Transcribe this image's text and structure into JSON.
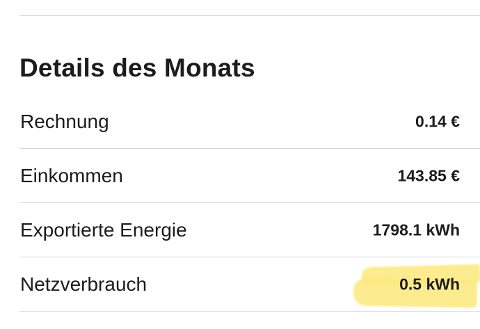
{
  "section": {
    "title": "Details des Monats"
  },
  "rows": [
    {
      "label": "Rechnung",
      "value": "0.14 €"
    },
    {
      "label": "Einkommen",
      "value": "143.85 €"
    },
    {
      "label": "Exportierte Energie",
      "value": "1798.1 kWh"
    },
    {
      "label": "Netzverbrauch",
      "value": "0.5 kWh",
      "highlighted": true
    }
  ],
  "colors": {
    "text": "#1c1c1e",
    "divider": "#d9d9dc",
    "highlight": "#fde97c",
    "background": "#ffffff"
  }
}
